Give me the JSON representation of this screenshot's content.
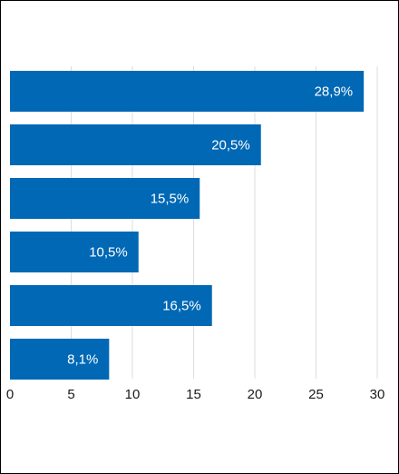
{
  "chart_data": {
    "type": "bar",
    "orientation": "horizontal",
    "categories": [
      "",
      "",
      "",
      "",
      "",
      ""
    ],
    "values": [
      28.9,
      20.5,
      15.5,
      10.5,
      16.5,
      8.1
    ],
    "data_labels": [
      "28,9%",
      "20,5%",
      "15,5%",
      "10,5%",
      "16,5%",
      "8,1%"
    ],
    "xlim": [
      0,
      30
    ],
    "x_ticks": [
      0,
      5,
      10,
      15,
      20,
      25,
      30
    ],
    "x_tick_labels": [
      "0",
      "5",
      "10",
      "15",
      "20",
      "25",
      "30"
    ],
    "grid": "vertical",
    "legend": "none",
    "bar_color": "#0068b4",
    "grid_color": "#dddddd"
  }
}
